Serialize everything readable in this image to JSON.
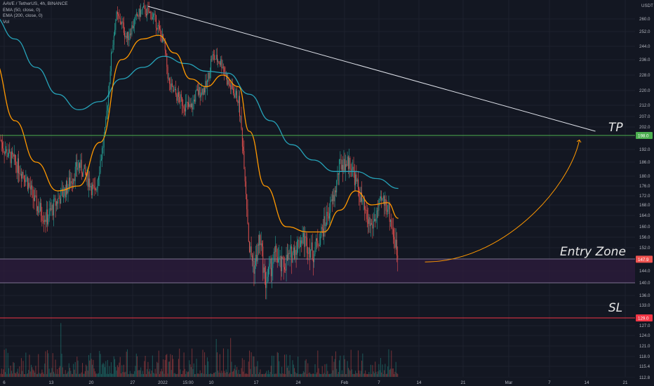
{
  "legend": {
    "symbol_line": "AAVE / TetherUS, 4h, BINANCE",
    "ema1_line": "EMA (50, close, 0)",
    "ema2_line": "EMA (200, close, 0)",
    "vol_line": "Vol"
  },
  "colors": {
    "background": "#131722",
    "grid": "#1e222d",
    "up": "#26a69a",
    "down": "#ef5350",
    "ema50": "#ff9800",
    "ema200": "#26a3b9",
    "trendline": "#e0e3eb",
    "tp_line": "#4caf50",
    "sl_line": "#f23645",
    "entry_zone_fill": "#2a1b3a",
    "arrow": "#ff9800"
  },
  "chart_data": {
    "type": "candlestick",
    "y_axis": {
      "unit": "USDT",
      "ticks": [
        "260.0",
        "252.0",
        "244.0",
        "236.0",
        "228.0",
        "220.0",
        "212.0",
        "207.0",
        "202.0",
        "197.0",
        "192.0",
        "186.0",
        "180.0",
        "176.0",
        "172.0",
        "168.0",
        "164.0",
        "160.0",
        "156.0",
        "152.0",
        "148.0",
        "144.0",
        "140.0",
        "136.0",
        "133.0",
        "129.0",
        "127.0",
        "124.0",
        "121.0",
        "118.0",
        "115.4",
        "112.8"
      ],
      "tick_values": [
        260,
        252,
        244,
        236,
        228,
        220,
        212,
        207,
        202,
        197,
        192,
        186,
        180,
        176,
        172,
        168,
        164,
        160,
        156,
        152,
        148,
        144,
        140,
        136,
        133,
        129,
        127,
        124,
        121,
        118,
        115.4,
        112.8
      ]
    },
    "x_axis": {
      "ticks": [
        "6",
        "13",
        "20",
        "27",
        "2022",
        "15:00",
        "10",
        "17",
        "24",
        "Feb",
        "7",
        "14",
        "21",
        "Mar",
        "7",
        "14",
        "21"
      ]
    },
    "price_path": [
      {
        "t": "Dec 4",
        "v": 205
      },
      {
        "t": "Dec 5",
        "v": 198
      },
      {
        "t": "Dec 6",
        "v": 192
      },
      {
        "t": "Dec 8",
        "v": 186
      },
      {
        "t": "Dec 10",
        "v": 180
      },
      {
        "t": "Dec 12",
        "v": 168
      },
      {
        "t": "Dec 14",
        "v": 163
      },
      {
        "t": "Dec 16",
        "v": 170
      },
      {
        "t": "Dec 18",
        "v": 176
      },
      {
        "t": "Dec 20",
        "v": 185
      },
      {
        "t": "Dec 22",
        "v": 178
      },
      {
        "t": "Dec 23",
        "v": 172
      },
      {
        "t": "Dec 25",
        "v": 200
      },
      {
        "t": "Dec 26",
        "v": 235
      },
      {
        "t": "Dec 27",
        "v": 262
      },
      {
        "t": "Dec 28",
        "v": 258
      },
      {
        "t": "Dec 29",
        "v": 248
      },
      {
        "t": "Dec 31",
        "v": 262
      },
      {
        "t": "Jan 1",
        "v": 266
      },
      {
        "t": "Jan 3",
        "v": 262
      },
      {
        "t": "Jan 5",
        "v": 245
      },
      {
        "t": "Jan 6",
        "v": 222
      },
      {
        "t": "Jan 8",
        "v": 215
      },
      {
        "t": "Jan 10",
        "v": 210
      },
      {
        "t": "Jan 11",
        "v": 218
      },
      {
        "t": "Jan 13",
        "v": 222
      },
      {
        "t": "Jan 14",
        "v": 238
      },
      {
        "t": "Jan 16",
        "v": 234
      },
      {
        "t": "Jan 17",
        "v": 224
      },
      {
        "t": "Jan 19",
        "v": 215
      },
      {
        "t": "Jan 20",
        "v": 188
      },
      {
        "t": "Jan 21",
        "v": 152
      },
      {
        "t": "Jan 22",
        "v": 145
      },
      {
        "t": "Jan 23",
        "v": 156
      },
      {
        "t": "Jan 24",
        "v": 140
      },
      {
        "t": "Jan 26",
        "v": 150
      },
      {
        "t": "Jan 27",
        "v": 145
      },
      {
        "t": "Jan 29",
        "v": 150
      },
      {
        "t": "Jan 31",
        "v": 156
      },
      {
        "t": "Feb 2",
        "v": 150
      },
      {
        "t": "Feb 4",
        "v": 160
      },
      {
        "t": "Feb 6",
        "v": 172
      },
      {
        "t": "Feb 7",
        "v": 185
      },
      {
        "t": "Feb 9",
        "v": 186
      },
      {
        "t": "Feb 10",
        "v": 178
      },
      {
        "t": "Feb 12",
        "v": 163
      },
      {
        "t": "Feb 13",
        "v": 160
      },
      {
        "t": "Feb 15",
        "v": 170
      },
      {
        "t": "Feb 16",
        "v": 168
      },
      {
        "t": "Feb 17",
        "v": 158
      },
      {
        "t": "Feb 18",
        "v": 147.9
      }
    ],
    "ema50_path": [
      {
        "t": "Dec 4",
        "v": 236
      },
      {
        "t": "Dec 8",
        "v": 205
      },
      {
        "t": "Dec 12",
        "v": 186
      },
      {
        "t": "Dec 16",
        "v": 174
      },
      {
        "t": "Dec 20",
        "v": 176
      },
      {
        "t": "Dec 24",
        "v": 195
      },
      {
        "t": "Dec 28",
        "v": 236
      },
      {
        "t": "Jan 1",
        "v": 248
      },
      {
        "t": "Jan 4",
        "v": 250
      },
      {
        "t": "Jan 7",
        "v": 240
      },
      {
        "t": "Jan 10",
        "v": 226
      },
      {
        "t": "Jan 13",
        "v": 222
      },
      {
        "t": "Jan 16",
        "v": 228
      },
      {
        "t": "Jan 19",
        "v": 222
      },
      {
        "t": "Jan 21",
        "v": 200
      },
      {
        "t": "Jan 24",
        "v": 176
      },
      {
        "t": "Jan 28",
        "v": 160
      },
      {
        "t": "Feb 1",
        "v": 158
      },
      {
        "t": "Feb 4",
        "v": 158
      },
      {
        "t": "Feb 7",
        "v": 166
      },
      {
        "t": "Feb 10",
        "v": 174
      },
      {
        "t": "Feb 13",
        "v": 168
      },
      {
        "t": "Feb 16",
        "v": 169
      },
      {
        "t": "Feb 18",
        "v": 163
      }
    ],
    "ema200_path": [
      {
        "t": "Dec 4",
        "v": 262
      },
      {
        "t": "Dec 8",
        "v": 248
      },
      {
        "t": "Dec 12",
        "v": 232
      },
      {
        "t": "Dec 16",
        "v": 218
      },
      {
        "t": "Dec 20",
        "v": 210
      },
      {
        "t": "Dec 24",
        "v": 214
      },
      {
        "t": "Dec 28",
        "v": 226
      },
      {
        "t": "Jan 1",
        "v": 232
      },
      {
        "t": "Jan 5",
        "v": 238
      },
      {
        "t": "Jan 9",
        "v": 234
      },
      {
        "t": "Jan 13",
        "v": 230
      },
      {
        "t": "Jan 17",
        "v": 229
      },
      {
        "t": "Jan 21",
        "v": 218
      },
      {
        "t": "Jan 25",
        "v": 205
      },
      {
        "t": "Jan 29",
        "v": 194
      },
      {
        "t": "Feb 2",
        "v": 187
      },
      {
        "t": "Feb 6",
        "v": 182
      },
      {
        "t": "Feb 10",
        "v": 182
      },
      {
        "t": "Feb 14",
        "v": 179
      },
      {
        "t": "Feb 18",
        "v": 175
      }
    ],
    "trendline": [
      {
        "t": "Jan 2",
        "v": 268
      },
      {
        "t": "Mar 27",
        "v": 200
      }
    ],
    "levels": {
      "tp": {
        "label": "TP",
        "value": 198.0,
        "tag": "198.0"
      },
      "entry_zone": {
        "label": "Entry Zone",
        "top": 148.0,
        "bottom": 140.0
      },
      "sl": {
        "label": "SL",
        "value": 129.0,
        "tag": "129.0"
      },
      "last_price": {
        "value": 147.9,
        "tag": "147.9"
      }
    },
    "projection_arrow": {
      "from": {
        "t": "Feb 23",
        "v": 147
      },
      "to": {
        "t": "Mar 24",
        "v": 196
      }
    }
  }
}
